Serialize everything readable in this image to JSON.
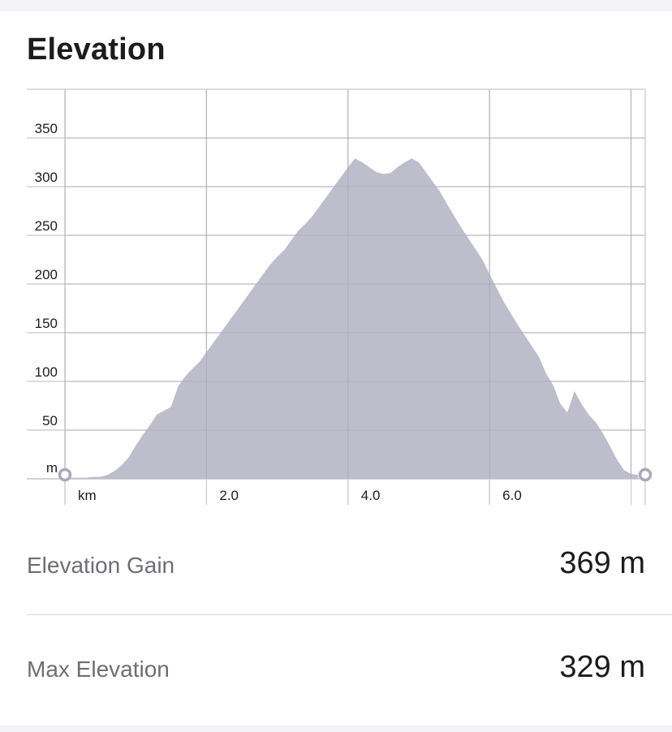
{
  "title": "Elevation",
  "chart_data": {
    "type": "area",
    "xunit": "km",
    "yunit": "m",
    "xlim": [
      0,
      8.2
    ],
    "ylim": [
      0,
      400
    ],
    "x_ticks": [
      0,
      2,
      4,
      6,
      8
    ],
    "x_tick_labels": [
      "km",
      "2.0",
      "4.0",
      "6.0",
      ""
    ],
    "y_ticks": [
      50,
      100,
      150,
      200,
      250,
      300,
      350
    ],
    "y_tick_labels": [
      "50",
      "100",
      "150",
      "200",
      "250",
      "300",
      "350"
    ],
    "y_axis_unit_label": "m",
    "grid": true,
    "color": "#b9b9c9",
    "x": [
      0,
      0.1,
      0.3,
      0.4,
      0.5,
      0.6,
      0.7,
      0.8,
      0.9,
      1.0,
      1.1,
      1.2,
      1.3,
      1.4,
      1.5,
      1.6,
      1.7,
      1.8,
      1.9,
      2.0,
      2.1,
      2.2,
      2.3,
      2.4,
      2.5,
      2.6,
      2.7,
      2.8,
      2.9,
      3.0,
      3.1,
      3.2,
      3.3,
      3.4,
      3.5,
      3.6,
      3.7,
      3.8,
      3.9,
      4.0,
      4.1,
      4.2,
      4.3,
      4.4,
      4.5,
      4.6,
      4.7,
      4.8,
      4.9,
      5.0,
      5.1,
      5.2,
      5.3,
      5.4,
      5.5,
      5.6,
      5.7,
      5.8,
      5.9,
      6.0,
      6.1,
      6.2,
      6.3,
      6.4,
      6.5,
      6.6,
      6.7,
      6.8,
      6.9,
      7.0,
      7.1,
      7.2,
      7.3,
      7.4,
      7.5,
      7.6,
      7.7,
      7.8,
      7.9,
      8.0,
      8.1
    ],
    "values": [
      0,
      1,
      1,
      2,
      2,
      4,
      8,
      14,
      22,
      34,
      45,
      55,
      66,
      70,
      74,
      95,
      105,
      113,
      120,
      130,
      140,
      150,
      160,
      170,
      180,
      190,
      200,
      210,
      220,
      228,
      235,
      245,
      255,
      262,
      270,
      280,
      290,
      300,
      310,
      320,
      329,
      325,
      320,
      315,
      313,
      314,
      320,
      325,
      329,
      325,
      315,
      305,
      295,
      282,
      270,
      258,
      247,
      236,
      225,
      210,
      196,
      182,
      170,
      158,
      147,
      136,
      125,
      108,
      96,
      77,
      68,
      90,
      77,
      66,
      58,
      47,
      34,
      20,
      9,
      5,
      4
    ]
  },
  "stats": {
    "gain_label": "Elevation Gain",
    "gain_value": "369 m",
    "max_label": "Max Elevation",
    "max_value": "329 m"
  }
}
